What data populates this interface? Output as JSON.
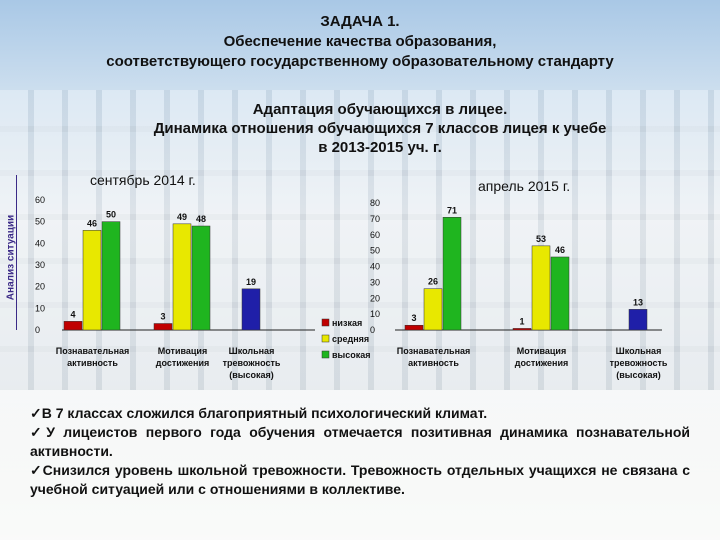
{
  "title": {
    "line1": "ЗАДАЧА 1.",
    "line2": "Обеспечение качества образования,",
    "line3": "соответствующего государственному образовательному стандарту"
  },
  "subtitle": {
    "line1": "Адаптация обучающихся в лицее.",
    "line2": "Динамика отношения обучающихся 7 классов лицея к учебе",
    "line3": "в 2013-2015 уч. г."
  },
  "side_label": "Анализ ситуации",
  "chart_data": [
    {
      "type": "bar",
      "title": "сентябрь 2014 г.",
      "categories": [
        "Познавательная активность",
        "Мотивация достижения",
        "Школьная тревожность (высокая)"
      ],
      "category_lines": [
        [
          "Познавательная",
          "активность"
        ],
        [
          "Мотивация",
          "достижения"
        ],
        [
          "Школьная",
          "тревожность",
          "(высокая)"
        ]
      ],
      "series": [
        {
          "name": "низкая",
          "color": "#c00000",
          "values": [
            4,
            3,
            null
          ]
        },
        {
          "name": "средняя",
          "color": "#e8e800",
          "values": [
            46,
            49,
            null
          ]
        },
        {
          "name": "высокая",
          "color": "#1fb51f",
          "values": [
            50,
            48,
            null
          ]
        },
        {
          "name": "",
          "color": "#1f1fa8",
          "values": [
            null,
            null,
            19
          ]
        }
      ],
      "ylim": [
        0,
        60
      ],
      "yticks": [
        0,
        10,
        20,
        30,
        40,
        50,
        60
      ],
      "grid": false
    },
    {
      "type": "bar",
      "title": "апрель 2015 г.",
      "categories": [
        "Познавательная активность",
        "Мотивация достижения",
        "Школьная тревожность (высокая)"
      ],
      "category_lines": [
        [
          "Познавательная",
          "активность"
        ],
        [
          "Мотивация",
          "достижения"
        ],
        [
          "Школьная",
          "тревожность",
          "(высокая)"
        ]
      ],
      "series": [
        {
          "name": "низкая",
          "color": "#c00000",
          "values": [
            3,
            1,
            null
          ]
        },
        {
          "name": "средняя",
          "color": "#e8e800",
          "values": [
            26,
            53,
            null
          ]
        },
        {
          "name": "высокая",
          "color": "#1fb51f",
          "values": [
            71,
            46,
            null
          ]
        },
        {
          "name": "",
          "color": "#1f1fa8",
          "values": [
            null,
            null,
            13
          ]
        }
      ],
      "ylim": [
        0,
        80
      ],
      "yticks": [
        0,
        10,
        20,
        30,
        40,
        50,
        60,
        70,
        80
      ],
      "grid": false
    }
  ],
  "legend": [
    {
      "label": "низкая",
      "color": "#c00000"
    },
    {
      "label": "средняя",
      "color": "#e8e800"
    },
    {
      "label": "высокая",
      "color": "#1fb51f"
    }
  ],
  "conclusions": [
    "✓В 7 классах сложился благоприятный психологический климат.",
    "✓У лицеистов первого года обучения отмечается позитивная динамика познавательной активности.",
    "✓Снизился уровень школьной тревожности. Тревожность отдельных учащихся не связана с учебной ситуацией или с отношениями в коллективе."
  ]
}
